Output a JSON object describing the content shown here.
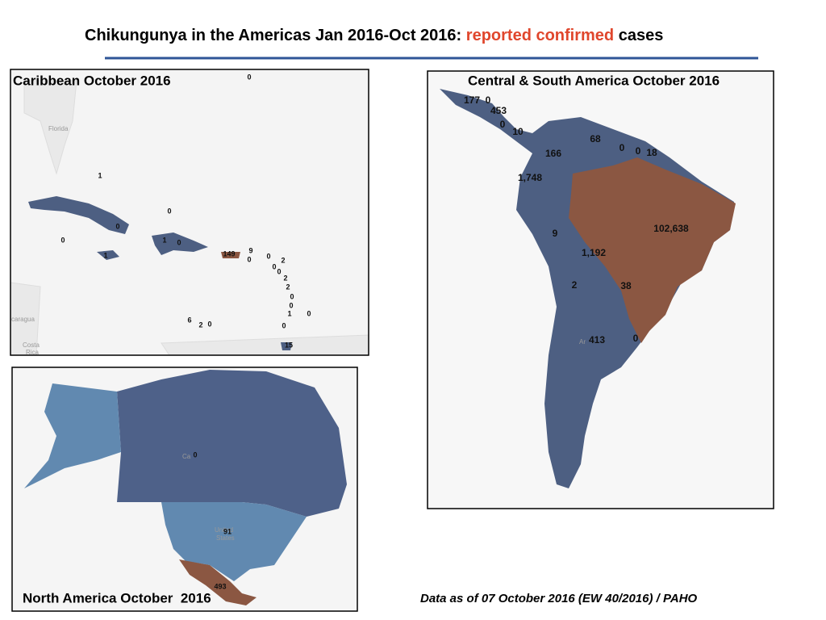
{
  "header": {
    "title_start": "Chikungunya in the Americas Jan 2016-Oct 2016:",
    "title_highlight": "reported confirmed",
    "title_end": "cases"
  },
  "maps": [
    {
      "title": "Caribbean October 2016",
      "places": [
        "Florida",
        "caragua",
        "Costa",
        "Rica"
      ],
      "labels": [
        "0",
        "1",
        "0",
        "0",
        "0",
        "1",
        "0",
        "1",
        "149",
        "9",
        "0",
        "0",
        "2",
        "0",
        "0",
        "2",
        "2",
        "0",
        "0",
        "1",
        "0",
        "6",
        "2",
        "0",
        "0",
        "15"
      ]
    },
    {
      "title": "Central & South America October 2016",
      "places": [
        "Ar"
      ],
      "labels": [
        "177",
        "0",
        "453",
        "0",
        "10",
        "68",
        "0",
        "0",
        "18",
        "166",
        "1,748",
        "102,638",
        "9",
        "1,192",
        "2",
        "38",
        "413",
        "0"
      ]
    },
    {
      "title": "North America October  2016",
      "places": [
        "Ca",
        "United",
        "States"
      ],
      "labels": [
        "0",
        "91",
        "493"
      ]
    }
  ],
  "footer": "Data as of 07 October 2016 (EW 40/2016) / PAHO"
}
